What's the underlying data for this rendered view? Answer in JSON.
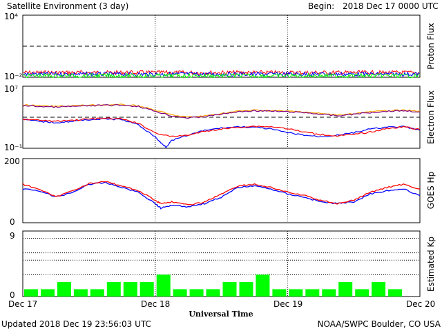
{
  "header": {
    "title": "Satellite Environment (3 day)",
    "begin_label": "Begin:",
    "begin_value": "2018 Dec 17 0000 UTC"
  },
  "footer": {
    "updated": "Updated 2018 Dec 19 23:56:03 UTC",
    "credit": "NOAA/SWPC Boulder, CO USA"
  },
  "chart_data": [
    {
      "type": "line",
      "ylabel": "Proton Flux",
      "yscale": "log",
      "ylim": [
        0.01,
        10000
      ],
      "tick_labels": [
        "10⁴",
        "10⁻²"
      ],
      "threshold": 10,
      "series": [
        {
          "color": "#ff0000",
          "level": 0.028
        },
        {
          "color": "#0000ff",
          "level": 0.02
        },
        {
          "color": "#00ff00",
          "level": 0.014
        }
      ]
    },
    {
      "type": "line",
      "ylabel": "Electron Flux",
      "yscale": "log",
      "ylim": [
        0.1,
        10000000
      ],
      "tick_labels": [
        "10⁷",
        "10⁻¹"
      ],
      "threshold": 1000,
      "series": [
        {
          "color": "#ffa500",
          "x": [
            0,
            3,
            6,
            9,
            12,
            15,
            18,
            21,
            24,
            27,
            30,
            33,
            36,
            39,
            42,
            45,
            48,
            51,
            54,
            57,
            60,
            63,
            66,
            69,
            72
          ],
          "y": [
            40000,
            30000,
            25000,
            30000,
            35000,
            40000,
            40000,
            30000,
            8000,
            2000,
            1000,
            1500,
            3000,
            6000,
            8000,
            7000,
            6000,
            5000,
            3000,
            2000,
            3000,
            5000,
            7000,
            8000,
            6000
          ]
        },
        {
          "color": "#800080",
          "x": [
            0,
            3,
            6,
            9,
            12,
            15,
            18,
            21,
            24,
            27,
            30,
            33,
            36,
            39,
            42,
            45,
            48,
            51,
            54,
            57,
            60,
            63,
            66,
            69,
            72
          ],
          "y": [
            30000,
            25000,
            20000,
            25000,
            30000,
            35000,
            35000,
            25000,
            6000,
            1500,
            800,
            1200,
            2500,
            5000,
            7000,
            6000,
            5000,
            4000,
            2500,
            1500,
            2500,
            4000,
            6000,
            7000,
            5000
          ]
        },
        {
          "color": "#0000ff",
          "x": [
            0,
            3,
            6,
            9,
            12,
            15,
            18,
            21,
            24,
            25,
            26,
            27,
            30,
            33,
            36,
            39,
            42,
            45,
            48,
            51,
            54,
            57,
            60,
            63,
            66,
            69,
            72
          ],
          "y": [
            500,
            300,
            200,
            300,
            500,
            600,
            500,
            100,
            3,
            0.5,
            0.15,
            1,
            5,
            20,
            40,
            60,
            50,
            30,
            10,
            5,
            3,
            5,
            10,
            30,
            50,
            60,
            20
          ]
        },
        {
          "color": "#ff0000",
          "x": [
            0,
            3,
            6,
            9,
            12,
            15,
            18,
            21,
            24,
            27,
            30,
            33,
            36,
            39,
            42,
            45,
            48,
            51,
            54,
            57,
            60,
            63,
            66,
            69,
            72
          ],
          "y": [
            600,
            400,
            300,
            400,
            600,
            700,
            600,
            150,
            10,
            3,
            5,
            15,
            30,
            50,
            70,
            60,
            35,
            12,
            6,
            4,
            6,
            12,
            35,
            60,
            25
          ]
        }
      ]
    },
    {
      "type": "line",
      "ylabel": "GOES Hp",
      "ylim": [
        0,
        200
      ],
      "tick_labels": [
        "200",
        "0"
      ],
      "series": [
        {
          "color": "#0000ff",
          "x": [
            0,
            3,
            6,
            9,
            12,
            15,
            18,
            21,
            24,
            25,
            27,
            30,
            33,
            36,
            39,
            42,
            45,
            48,
            51,
            54,
            57,
            60,
            63,
            66,
            69,
            72
          ],
          "y": [
            105,
            100,
            80,
            95,
            120,
            125,
            110,
            95,
            60,
            45,
            55,
            50,
            60,
            80,
            110,
            115,
            105,
            90,
            80,
            65,
            60,
            65,
            90,
            100,
            105,
            85
          ]
        },
        {
          "color": "#ff0000",
          "x": [
            0,
            3,
            6,
            9,
            12,
            15,
            18,
            21,
            24,
            25,
            27,
            30,
            33,
            36,
            39,
            42,
            45,
            48,
            51,
            54,
            57,
            60,
            63,
            66,
            69,
            72
          ],
          "y": [
            120,
            105,
            80,
            100,
            122,
            128,
            115,
            100,
            70,
            60,
            65,
            55,
            65,
            90,
            115,
            120,
            110,
            95,
            85,
            70,
            60,
            70,
            95,
            110,
            120,
            105
          ]
        }
      ]
    },
    {
      "type": "bar",
      "ylabel": "Estimated Kp",
      "ylim": [
        0,
        9
      ],
      "tick_labels": [
        "9",
        "0"
      ],
      "gridlines": [
        3,
        5,
        6,
        8
      ],
      "color": "#00ff00",
      "values": [
        1,
        1,
        2,
        1,
        1,
        2,
        2,
        2,
        3,
        1,
        1,
        1,
        2,
        2,
        3,
        1,
        1,
        1,
        1,
        2,
        1,
        2,
        1,
        0
      ]
    }
  ],
  "x_axis": {
    "label": "Universal Time",
    "ticks": [
      "Dec 17",
      "Dec 18",
      "Dec 19",
      "Dec 20"
    ],
    "xlim_hours": [
      0,
      72
    ]
  }
}
